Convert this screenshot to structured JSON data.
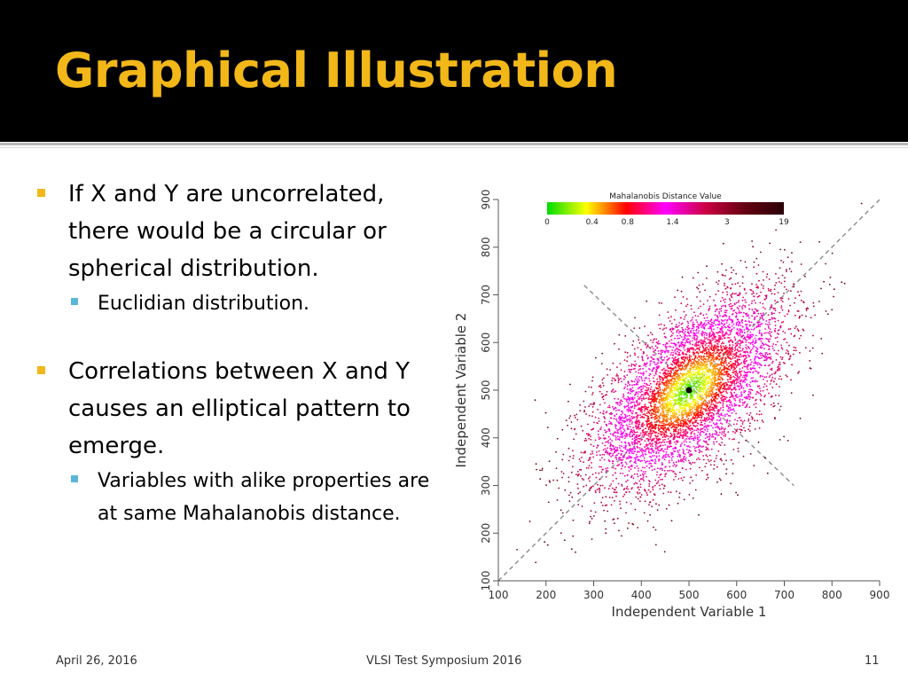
{
  "slide": {
    "title": "Graphical Illustration",
    "bullets": [
      {
        "text": "If X and Y are uncorrelated, there would be a circular or spherical distribution.",
        "sub": [
          "Euclidian distribution."
        ]
      },
      {
        "text": "Correlations between X and Y causes an elliptical pattern to emerge.",
        "sub": [
          "Variables with alike properties are at same Mahalanobis distance."
        ]
      }
    ],
    "footer": {
      "date": "April 26, 2016",
      "center": "VLSI Test Symposium 2016",
      "page": "11"
    }
  },
  "colors": {
    "title_band": "#000000",
    "title_text": "#F2B718",
    "bullet_marker": "#F2B718",
    "sub_marker": "#5AB7D9"
  },
  "chart_data": {
    "type": "scatter",
    "xlabel": "Independent Variable 1",
    "ylabel": "Independent Variable 2",
    "xlim": [
      100,
      900
    ],
    "ylim": [
      100,
      900
    ],
    "xticks": [
      100,
      200,
      300,
      400,
      500,
      600,
      700,
      800,
      900
    ],
    "yticks": [
      100,
      200,
      300,
      400,
      500,
      600,
      700,
      800,
      900
    ],
    "center": [
      500,
      500
    ],
    "major_axis_line": [
      [
        100,
        100
      ],
      [
        900,
        900
      ]
    ],
    "minor_axis_line": [
      [
        280,
        720
      ],
      [
        720,
        300
      ]
    ],
    "point_count": 6000,
    "stddev": 100,
    "correlation": 0.6,
    "colorbar": {
      "title": "Mahalanobis Distance Value",
      "ticks": [
        "0",
        "0.4",
        "0.8",
        "1.4",
        "3",
        "19"
      ],
      "colors": [
        "#00dd00",
        "#ffff00",
        "#ff0000",
        "#ff00ff",
        "#cc0044",
        "#660011",
        "#2a0008"
      ]
    },
    "grid": false,
    "legend": "top"
  }
}
